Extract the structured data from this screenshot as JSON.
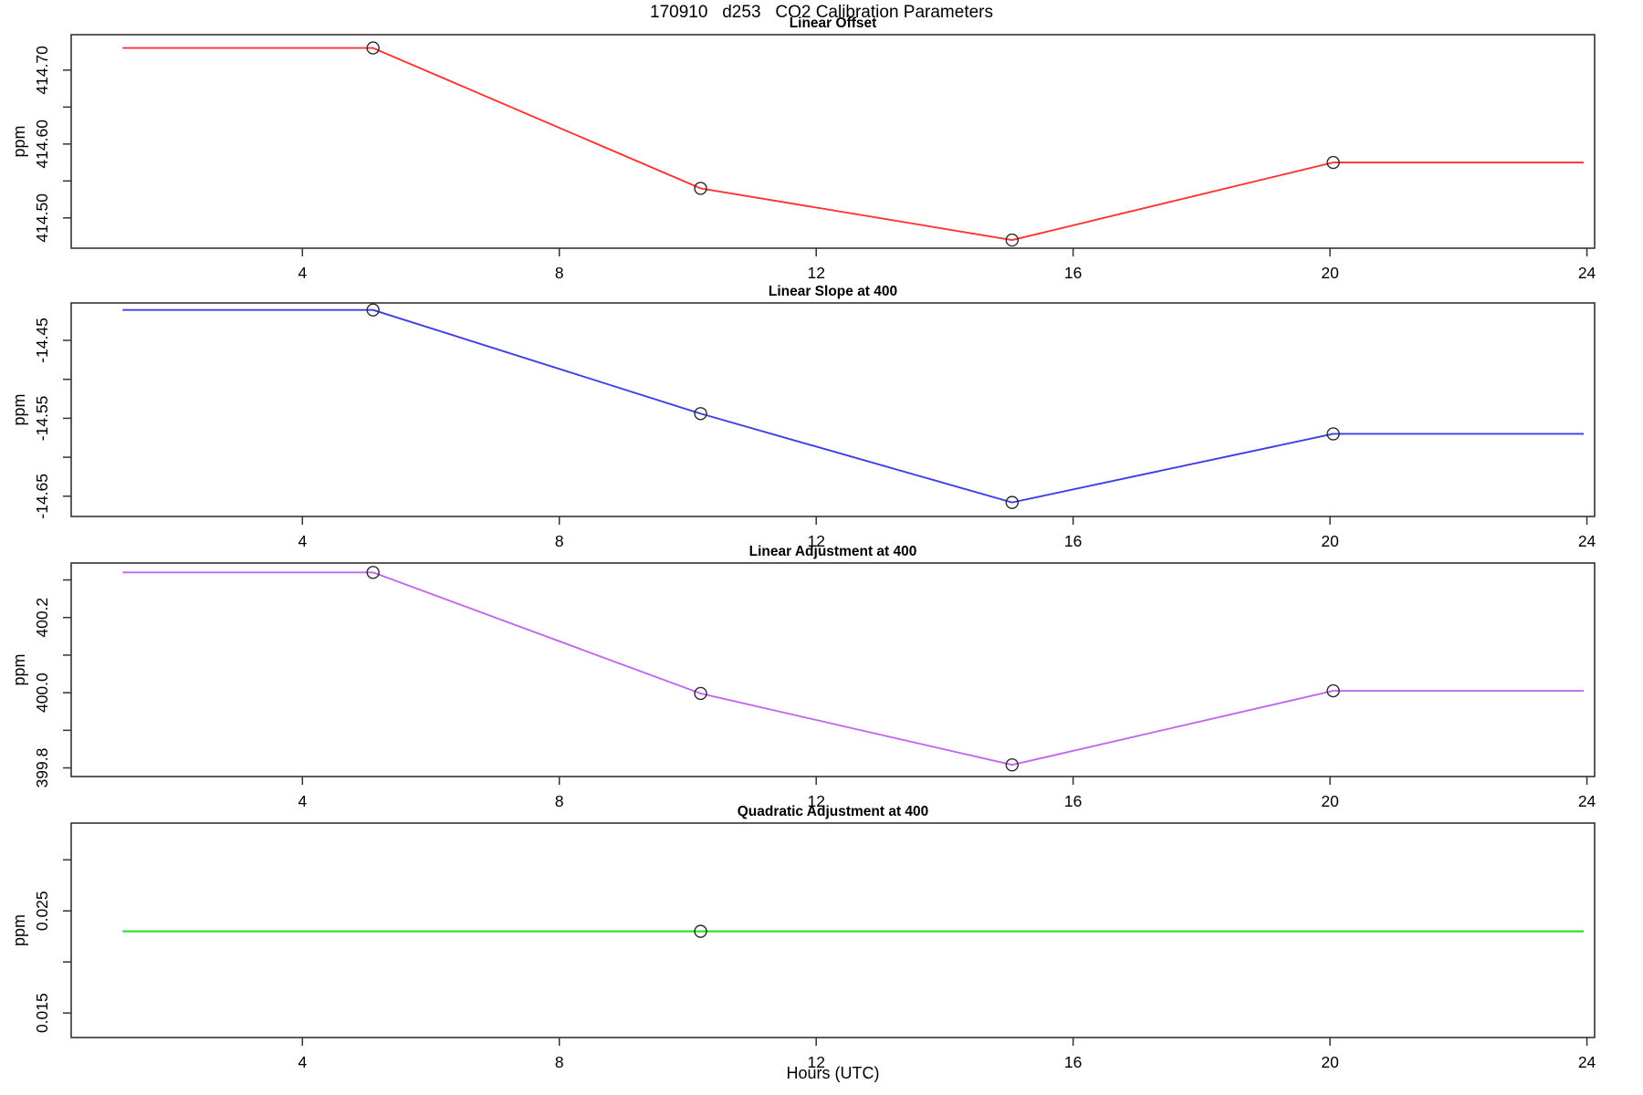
{
  "page_title": "170910   d253   CO2 Calibration Parameters",
  "chart_data": {
    "type": "line",
    "x_axis": {
      "label": "Hours (UTC)",
      "lim": [
        0.4,
        24.12
      ],
      "ticks": [
        4,
        8,
        12,
        16,
        20,
        24
      ]
    },
    "panels": [
      {
        "title": "Linear Offset",
        "ylabel": "ppm",
        "color": "#ff3333",
        "ylim": [
          414.459,
          414.748
        ],
        "yticks": [
          {
            "v": 414.5,
            "label": "414.50"
          },
          {
            "v": 414.55,
            "label": ""
          },
          {
            "v": 414.6,
            "label": "414.60"
          },
          {
            "v": 414.65,
            "label": ""
          },
          {
            "v": 414.7,
            "label": "414.70"
          }
        ],
        "line": {
          "x": [
            1.2,
            5.1,
            10.2,
            15.05,
            20.05,
            23.95
          ],
          "y": [
            414.73,
            414.73,
            414.54,
            414.47,
            414.575,
            414.575
          ]
        },
        "points": {
          "x": [
            5.1,
            10.2,
            15.05,
            20.05
          ],
          "y": [
            414.73,
            414.54,
            414.47,
            414.575
          ]
        }
      },
      {
        "title": "Linear Slope at 400",
        "ylabel": "ppm",
        "color": "#3d3de8",
        "ylim": [
          -14.676,
          -14.402
        ],
        "yticks": [
          {
            "v": -14.65,
            "label": "-14.65"
          },
          {
            "v": -14.6,
            "label": ""
          },
          {
            "v": -14.55,
            "label": "-14.55"
          },
          {
            "v": -14.5,
            "label": ""
          },
          {
            "v": -14.45,
            "label": "-14.45"
          }
        ],
        "line": {
          "x": [
            1.2,
            5.1,
            10.2,
            15.05,
            20.05,
            23.95
          ],
          "y": [
            -14.411,
            -14.411,
            -14.544,
            -14.658,
            -14.57,
            -14.57
          ]
        },
        "points": {
          "x": [
            5.1,
            10.2,
            15.05,
            20.05
          ],
          "y": [
            -14.411,
            -14.544,
            -14.658,
            -14.57
          ]
        }
      },
      {
        "title": "Linear Adjustment at 400",
        "ylabel": "ppm",
        "color": "#c069ec",
        "ylim": [
          399.777,
          400.345
        ],
        "yticks": [
          {
            "v": 399.8,
            "label": "399.8"
          },
          {
            "v": 399.9,
            "label": ""
          },
          {
            "v": 400.0,
            "label": "400.0"
          },
          {
            "v": 400.1,
            "label": ""
          },
          {
            "v": 400.2,
            "label": "400.2"
          },
          {
            "v": 400.3,
            "label": ""
          }
        ],
        "line": {
          "x": [
            1.2,
            5.1,
            10.2,
            15.05,
            20.05,
            23.95
          ],
          "y": [
            400.32,
            400.32,
            399.998,
            399.808,
            400.005,
            400.005
          ]
        },
        "points": {
          "x": [
            5.1,
            10.2,
            15.05,
            20.05
          ],
          "y": [
            400.32,
            399.998,
            399.808,
            400.005
          ]
        }
      },
      {
        "title": "Quadratic Adjustment at 400",
        "ylabel": "ppm",
        "color": "#1ede1e",
        "ylim": [
          0.0126,
          0.0336
        ],
        "yticks": [
          {
            "v": 0.015,
            "label": "0.015"
          },
          {
            "v": 0.02,
            "label": ""
          },
          {
            "v": 0.025,
            "label": "0.025"
          },
          {
            "v": 0.03,
            "label": ""
          }
        ],
        "line": {
          "x": [
            1.2,
            23.95
          ],
          "y": [
            0.023,
            0.023
          ]
        },
        "points": {
          "x": [
            10.2
          ],
          "y": [
            0.023
          ]
        }
      }
    ]
  }
}
